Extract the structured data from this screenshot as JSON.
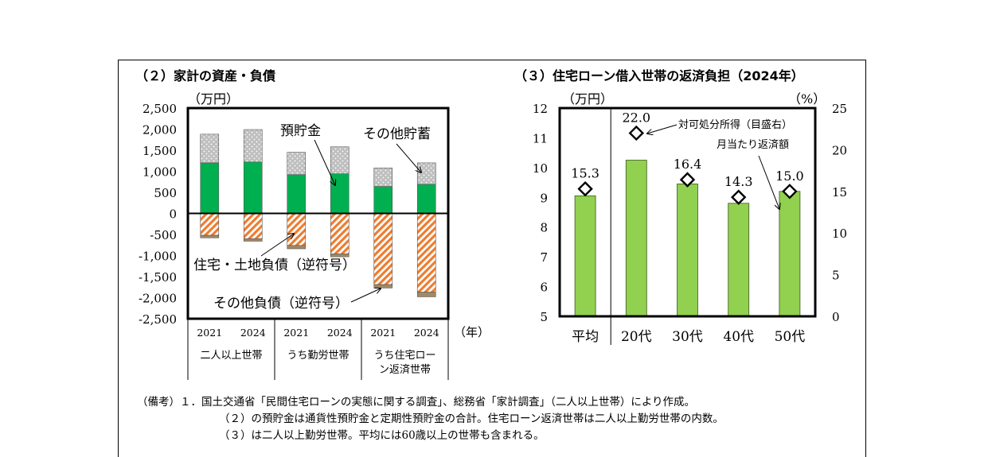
{
  "chart_data": [
    {
      "type": "bar",
      "title": "（２）家計の資産・負債",
      "unit_label": "（万円）",
      "year_suffix": "（年）",
      "ylim": [
        -2500,
        2500
      ],
      "yticks": [
        "2,500",
        "2,000",
        "1,500",
        "1,000",
        "500",
        "0",
        "-500",
        "-1,000",
        "-1,500",
        "-2,000",
        "-2,500"
      ],
      "categories": [
        {
          "year": "2021",
          "group": "二人以上世帯"
        },
        {
          "year": "2024",
          "group": "二人以上世帯"
        },
        {
          "year": "2021",
          "group": "うち勤労世帯"
        },
        {
          "year": "2024",
          "group": "うち勤労世帯"
        },
        {
          "year": "2021",
          "group": "うち住宅ロー ン返済世帯"
        },
        {
          "year": "2024",
          "group": "うち住宅ロー ン返済世帯"
        }
      ],
      "groups": [
        "二人以上世帯",
        "うち勤労世帯",
        "うち住宅ロー\nン返済世帯"
      ],
      "series": [
        {
          "name": "預貯金",
          "color": "#00b050",
          "values": [
            1200,
            1220,
            920,
            940,
            640,
            690
          ]
        },
        {
          "name": "その他貯蓄",
          "color": "#c8c8c8",
          "values": [
            680,
            770,
            530,
            640,
            440,
            510
          ]
        },
        {
          "name": "住宅・土地負債（逆符号）",
          "color": "#f4b183",
          "values": [
            -520,
            -600,
            -760,
            -960,
            -1690,
            -1870
          ]
        },
        {
          "name": "その他負債（逆符号）",
          "color": "#a08a66",
          "values": [
            -60,
            -60,
            -80,
            -70,
            -80,
            -110
          ]
        }
      ],
      "annotations": [
        "預貯金",
        "その他貯蓄",
        "住宅・土地負債（逆符号）",
        "その他負債（逆符号）"
      ]
    },
    {
      "type": "bar",
      "title": "（３）住宅ローン借入世帯の返済負担（2024年）",
      "ylabel_left": "（万円）",
      "ylabel_right": "（%）",
      "ylim_left": [
        5,
        12
      ],
      "ylim_right": [
        0,
        25
      ],
      "yticks_left": [
        "12",
        "11",
        "10",
        "9",
        "8",
        "7",
        "6",
        "5"
      ],
      "yticks_right": [
        "25",
        "20",
        "15",
        "10",
        "5",
        "0"
      ],
      "categories": [
        "平均",
        "20代",
        "30代",
        "40代",
        "50代"
      ],
      "series": [
        {
          "name": "月当たり返済額",
          "axis": "left",
          "color": "#92d050",
          "values": [
            9.05,
            10.25,
            9.45,
            8.8,
            9.2
          ]
        },
        {
          "name": "対可処分所得（目盛右）",
          "axis": "right",
          "marker": "diamond",
          "values": [
            15.3,
            22.0,
            16.4,
            14.3,
            15.0
          ]
        }
      ],
      "data_labels": [
        "15.3",
        "22.0",
        "16.4",
        "14.3",
        "15.0"
      ],
      "annotations": [
        "対可処分所得（目盛右）",
        "月当たり返済額"
      ]
    }
  ],
  "notes": {
    "prefix": "（備考）１．",
    "line1": "国土交通省「民間住宅ローンの実態に関する調査」、総務省「家計調査」（二人以上世帯）により作成。",
    "line2": "（２）の預貯金は通貨性預貯金と定期性預貯金の合計。住宅ローン返済世帯は二人以上勤労世帯の内数。",
    "line3": "（３）は二人以上勤労世帯。平均には60歳以上の世帯も含まれる。"
  }
}
